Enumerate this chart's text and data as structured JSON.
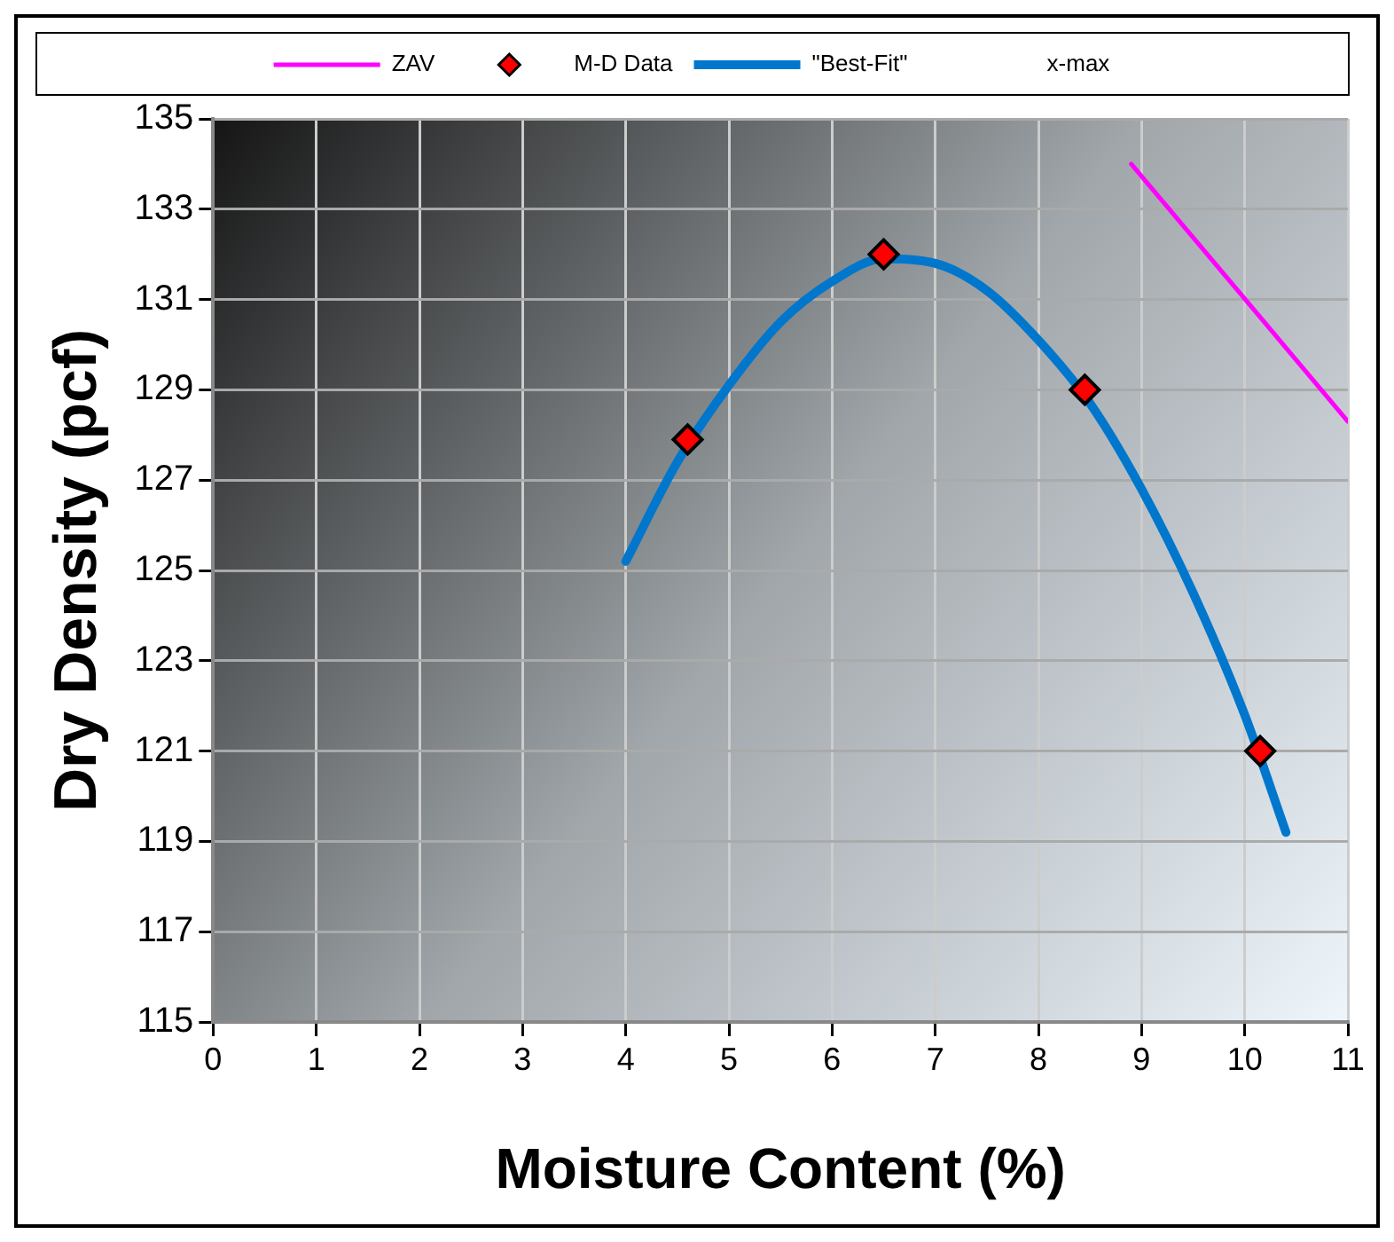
{
  "chart_data": {
    "type": "scatter",
    "xlabel": "Moisture Content (%)",
    "ylabel": "Dry Density (pcf)",
    "xlim": [
      0,
      11
    ],
    "xticks": [
      0,
      1,
      2,
      3,
      4,
      5,
      6,
      7,
      8,
      9,
      10,
      11
    ],
    "ylim": [
      115,
      135
    ],
    "yticks": [
      115,
      117,
      119,
      121,
      123,
      125,
      127,
      129,
      131,
      133,
      135
    ],
    "grid": true,
    "legend": "top",
    "series": [
      {
        "name": "ZAV",
        "type": "line",
        "color": "#ff00ff",
        "x": [
          8.9,
          11
        ],
        "values": [
          134,
          128.3
        ]
      },
      {
        "name": "M-D Data",
        "type": "scatter",
        "marker": "diamond",
        "color": "#ff0000",
        "x": [
          4.6,
          6.5,
          8.45,
          10.15
        ],
        "values": [
          127.9,
          132,
          129,
          121
        ]
      },
      {
        "name": "\"Best-Fit\"",
        "type": "line",
        "color": "#0077cc",
        "x": [
          4.0,
          4.5,
          5.0,
          5.5,
          6.0,
          6.5,
          7.0,
          7.5,
          8.0,
          8.5,
          9.0,
          9.5,
          10.0,
          10.4
        ],
        "values": [
          125.2,
          127.4,
          129.1,
          130.5,
          131.4,
          131.9,
          131.8,
          131.2,
          130.1,
          128.7,
          126.8,
          124.5,
          121.8,
          119.2
        ]
      },
      {
        "name": "x-max",
        "type": "line"
      }
    ]
  }
}
